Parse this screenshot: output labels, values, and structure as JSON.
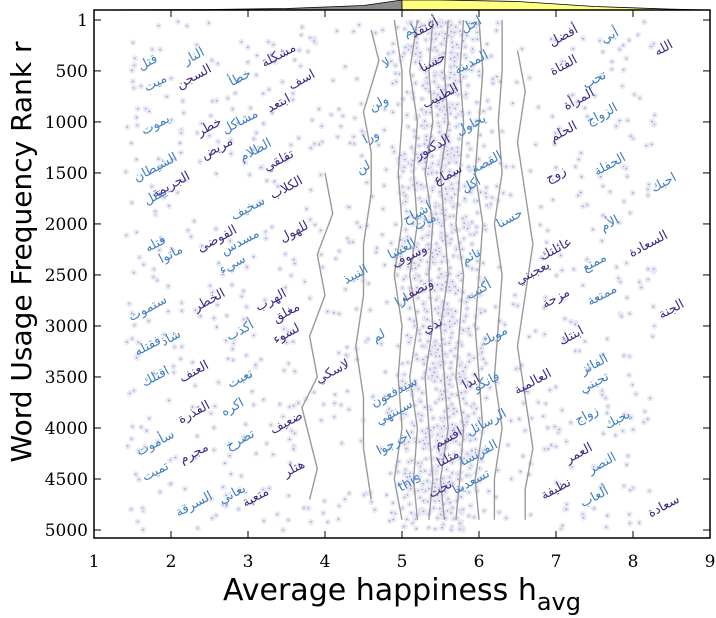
{
  "chart_data": {
    "type": "scatter",
    "title": "",
    "xlabel": "Average happiness h",
    "xlabel_sub": "avg",
    "ylabel": "Word Usage Frequency Rank r",
    "xlim": [
      1,
      9
    ],
    "ylim": [
      5000,
      1
    ],
    "x_ticks": [
      "1",
      "2",
      "3",
      "4",
      "5",
      "6",
      "7",
      "8",
      "9"
    ],
    "y_ticks": [
      "1",
      "500",
      "1000",
      "1500",
      "2000",
      "2500",
      "3000",
      "3500",
      "4000",
      "4500",
      "5000"
    ],
    "y_tick_values": [
      1,
      500,
      1000,
      1500,
      2000,
      2500,
      3000,
      3500,
      4000,
      4500,
      5000
    ],
    "grid": false,
    "colors": {
      "point_fill": "#e6e6f6",
      "point_dot": "#9a9abe",
      "word_dark": "#3d2b84",
      "word_light": "#3f7fc0",
      "percentile_line": "#9a9a9a",
      "hist_left": "#8c8c8c",
      "hist_right": "#ffff80"
    },
    "words": [
      {
        "text": "قتل",
        "x": 1.7,
        "y": 420,
        "tone": "light"
      },
      {
        "text": "ميت",
        "x": 1.8,
        "y": 620,
        "tone": "light"
      },
      {
        "text": "يموت",
        "x": 1.8,
        "y": 1030,
        "tone": "light"
      },
      {
        "text": "الشيطان",
        "x": 1.8,
        "y": 1450,
        "tone": "light"
      },
      {
        "text": "الجريمة",
        "x": 2.0,
        "y": 1620,
        "tone": "dark"
      },
      {
        "text": "يقتل",
        "x": 1.8,
        "y": 1730,
        "tone": "light"
      },
      {
        "text": "قتله",
        "x": 1.8,
        "y": 2200,
        "tone": "light"
      },
      {
        "text": "ماتوا",
        "x": 2.0,
        "y": 2300,
        "tone": "light"
      },
      {
        "text": "ستموت",
        "x": 1.7,
        "y": 2830,
        "tone": "light"
      },
      {
        "text": "شاذ",
        "x": 2.0,
        "y": 3120,
        "tone": "light"
      },
      {
        "text": "فقتله",
        "x": 1.7,
        "y": 3200,
        "tone": "light"
      },
      {
        "text": "اقتلك",
        "x": 1.8,
        "y": 3500,
        "tone": "light"
      },
      {
        "text": "سأموت",
        "x": 1.8,
        "y": 4150,
        "tone": "light"
      },
      {
        "text": "تميت",
        "x": 1.8,
        "y": 4430,
        "tone": "light"
      },
      {
        "text": "السجن",
        "x": 2.3,
        "y": 560,
        "tone": "dark"
      },
      {
        "text": "النار",
        "x": 2.3,
        "y": 360,
        "tone": "light"
      },
      {
        "text": "خطر",
        "x": 2.5,
        "y": 1050,
        "tone": "dark"
      },
      {
        "text": "مريض",
        "x": 2.6,
        "y": 1260,
        "tone": "dark"
      },
      {
        "text": "الفوضى",
        "x": 2.6,
        "y": 2150,
        "tone": "dark"
      },
      {
        "text": "الخطر",
        "x": 2.5,
        "y": 2750,
        "tone": "dark"
      },
      {
        "text": "العنف",
        "x": 2.3,
        "y": 3450,
        "tone": "dark"
      },
      {
        "text": "القذرة",
        "x": 2.3,
        "y": 3850,
        "tone": "dark"
      },
      {
        "text": "مجرم",
        "x": 2.3,
        "y": 4250,
        "tone": "dark"
      },
      {
        "text": "السرقة",
        "x": 2.3,
        "y": 4750,
        "tone": "light"
      },
      {
        "text": "خطأ",
        "x": 2.9,
        "y": 570,
        "tone": "light"
      },
      {
        "text": "مشاكل",
        "x": 2.9,
        "y": 1000,
        "tone": "light"
      },
      {
        "text": "الظلام",
        "x": 3.1,
        "y": 1280,
        "tone": "light"
      },
      {
        "text": "سخيف",
        "x": 3.0,
        "y": 1850,
        "tone": "light"
      },
      {
        "text": "مسدس",
        "x": 2.9,
        "y": 2180,
        "tone": "light"
      },
      {
        "text": "سيء",
        "x": 2.8,
        "y": 2400,
        "tone": "light"
      },
      {
        "text": "أكذب",
        "x": 2.9,
        "y": 3050,
        "tone": "light"
      },
      {
        "text": "تعبت",
        "x": 2.9,
        "y": 3520,
        "tone": "light"
      },
      {
        "text": "اكره",
        "x": 2.8,
        "y": 3800,
        "tone": "light"
      },
      {
        "text": "تصرخ",
        "x": 2.9,
        "y": 4120,
        "tone": "light"
      },
      {
        "text": "يعاني",
        "x": 2.8,
        "y": 4650,
        "tone": "light"
      },
      {
        "text": "مشكلة",
        "x": 3.4,
        "y": 350,
        "tone": "dark"
      },
      {
        "text": "اسف",
        "x": 3.7,
        "y": 590,
        "tone": "dark"
      },
      {
        "text": "ابتعد",
        "x": 3.4,
        "y": 820,
        "tone": "dark"
      },
      {
        "text": "تقلقي",
        "x": 3.4,
        "y": 1380,
        "tone": "dark"
      },
      {
        "text": "الكلاب",
        "x": 3.5,
        "y": 1650,
        "tone": "dark"
      },
      {
        "text": "للهول",
        "x": 3.6,
        "y": 2080,
        "tone": "dark"
      },
      {
        "text": "الهرب",
        "x": 3.3,
        "y": 2750,
        "tone": "dark"
      },
      {
        "text": "مغلق",
        "x": 3.5,
        "y": 2870,
        "tone": "dark"
      },
      {
        "text": "لسوء",
        "x": 3.5,
        "y": 3080,
        "tone": "dark"
      },
      {
        "text": "ضعيف",
        "x": 3.5,
        "y": 3950,
        "tone": "dark"
      },
      {
        "text": "هتلر",
        "x": 3.6,
        "y": 4400,
        "tone": "dark"
      },
      {
        "text": "متعبة",
        "x": 3.1,
        "y": 4680,
        "tone": "dark"
      },
      {
        "text": "لاسكي",
        "x": 4.1,
        "y": 3450,
        "tone": "dark"
      },
      {
        "text": "لا",
        "x": 4.8,
        "y": 430,
        "tone": "light"
      },
      {
        "text": "لم",
        "x": 5.1,
        "y": 110,
        "tone": "light"
      },
      {
        "text": "ولن",
        "x": 4.7,
        "y": 820,
        "tone": "light"
      },
      {
        "text": "ورا",
        "x": 4.6,
        "y": 1150,
        "tone": "light"
      },
      {
        "text": "لن",
        "x": 4.5,
        "y": 1450,
        "tone": "light"
      },
      {
        "text": "النبيذ",
        "x": 4.4,
        "y": 2500,
        "tone": "light"
      },
      {
        "text": "لم",
        "x": 4.7,
        "y": 3100,
        "tone": "light"
      },
      {
        "text": "سيدفعون",
        "x": 4.9,
        "y": 3650,
        "tone": "light"
      },
      {
        "text": "سينتهي",
        "x": 4.9,
        "y": 3850,
        "tone": "light"
      },
      {
        "text": "اخرجوا",
        "x": 4.9,
        "y": 4150,
        "tone": "light"
      },
      {
        "text": "this",
        "x": 5.1,
        "y": 4540,
        "tone": "light"
      },
      {
        "text": "أعتقد",
        "x": 5.3,
        "y": 80,
        "tone": "dark"
      },
      {
        "text": "حسنا",
        "x": 5.4,
        "y": 420,
        "tone": "dark"
      },
      {
        "text": "الطبيب",
        "x": 5.5,
        "y": 750,
        "tone": "dark"
      },
      {
        "text": "الدكتور",
        "x": 5.4,
        "y": 1250,
        "tone": "dark"
      },
      {
        "text": "سماع",
        "x": 5.6,
        "y": 1520,
        "tone": "dark"
      },
      {
        "text": "اشباح",
        "x": 5.2,
        "y": 1900,
        "tone": "light"
      },
      {
        "text": "مات",
        "x": 5.3,
        "y": 1980,
        "tone": "light"
      },
      {
        "text": "وسوف",
        "x": 5.1,
        "y": 2320,
        "tone": "dark"
      },
      {
        "text": "العشا",
        "x": 5.0,
        "y": 2250,
        "tone": "light"
      },
      {
        "text": "وتصف",
        "x": 5.2,
        "y": 2650,
        "tone": "dark"
      },
      {
        "text": "ارا",
        "x": 5.0,
        "y": 2750,
        "tone": "light"
      },
      {
        "text": "ندي",
        "x": 5.4,
        "y": 3000,
        "tone": "dark"
      },
      {
        "text": "ابدا",
        "x": 5.9,
        "y": 3550,
        "tone": "dark"
      },
      {
        "text": "اقسم",
        "x": 5.6,
        "y": 4100,
        "tone": "dark"
      },
      {
        "text": "مثلنا",
        "x": 5.6,
        "y": 4300,
        "tone": "dark"
      },
      {
        "text": "تحت",
        "x": 5.5,
        "y": 4600,
        "tone": "dark"
      },
      {
        "text": "اجل",
        "x": 5.9,
        "y": 50,
        "tone": "light"
      },
      {
        "text": "المدينة",
        "x": 5.9,
        "y": 420,
        "tone": "light"
      },
      {
        "text": "يحاول",
        "x": 5.9,
        "y": 1030,
        "tone": "light"
      },
      {
        "text": "القصة",
        "x": 6.1,
        "y": 1400,
        "tone": "light"
      },
      {
        "text": "أكل",
        "x": 5.9,
        "y": 1620,
        "tone": "light"
      },
      {
        "text": "نائم",
        "x": 5.9,
        "y": 2320,
        "tone": "light"
      },
      {
        "text": "أكتب",
        "x": 6.0,
        "y": 2650,
        "tone": "light"
      },
      {
        "text": "موبك",
        "x": 6.2,
        "y": 3100,
        "tone": "light"
      },
      {
        "text": "فانكو",
        "x": 6.1,
        "y": 3550,
        "tone": "light"
      },
      {
        "text": "الرسائل",
        "x": 6.1,
        "y": 3950,
        "tone": "light"
      },
      {
        "text": "الفرنسا",
        "x": 6.0,
        "y": 4250,
        "tone": "light"
      },
      {
        "text": "تسعدينا",
        "x": 5.9,
        "y": 4530,
        "tone": "light"
      },
      {
        "text": "حسنا",
        "x": 6.4,
        "y": 1950,
        "tone": "light"
      },
      {
        "text": "يعجبني",
        "x": 6.7,
        "y": 2480,
        "tone": "dark"
      },
      {
        "text": "العالمية",
        "x": 6.7,
        "y": 3550,
        "tone": "dark"
      },
      {
        "text": "أفضل",
        "x": 7.1,
        "y": 160,
        "tone": "dark"
      },
      {
        "text": "الفتاة",
        "x": 7.1,
        "y": 450,
        "tone": "dark"
      },
      {
        "text": "المرأة",
        "x": 7.3,
        "y": 780,
        "tone": "dark"
      },
      {
        "text": "الحلم",
        "x": 7.1,
        "y": 1100,
        "tone": "dark"
      },
      {
        "text": "زوج",
        "x": 7.0,
        "y": 1520,
        "tone": "dark"
      },
      {
        "text": "عائلتك",
        "x": 7.0,
        "y": 2250,
        "tone": "dark"
      },
      {
        "text": "مزحة",
        "x": 7.0,
        "y": 2730,
        "tone": "dark"
      },
      {
        "text": "ابنتك",
        "x": 7.2,
        "y": 3100,
        "tone": "dark"
      },
      {
        "text": "العمر",
        "x": 7.3,
        "y": 4250,
        "tone": "dark"
      },
      {
        "text": "نظيفة",
        "x": 7.0,
        "y": 4600,
        "tone": "dark"
      },
      {
        "text": "أبي",
        "x": 7.7,
        "y": 160,
        "tone": "light"
      },
      {
        "text": "تحب",
        "x": 7.5,
        "y": 590,
        "tone": "light"
      },
      {
        "text": "الزواج",
        "x": 7.6,
        "y": 930,
        "tone": "light"
      },
      {
        "text": "الحفلة",
        "x": 7.7,
        "y": 1420,
        "tone": "light"
      },
      {
        "text": "الأم",
        "x": 7.7,
        "y": 2000,
        "tone": "light"
      },
      {
        "text": "ممتع",
        "x": 7.5,
        "y": 2380,
        "tone": "light"
      },
      {
        "text": "ممتعة",
        "x": 7.6,
        "y": 2700,
        "tone": "light"
      },
      {
        "text": "الفائز",
        "x": 7.5,
        "y": 3380,
        "tone": "light"
      },
      {
        "text": "تحبني",
        "x": 7.5,
        "y": 3560,
        "tone": "light"
      },
      {
        "text": "زواج",
        "x": 7.4,
        "y": 3880,
        "tone": "light"
      },
      {
        "text": "يحبك",
        "x": 7.8,
        "y": 3920,
        "tone": "light"
      },
      {
        "text": "النصر",
        "x": 7.6,
        "y": 4350,
        "tone": "light"
      },
      {
        "text": "ألعاب",
        "x": 7.5,
        "y": 4680,
        "tone": "light"
      },
      {
        "text": "الله",
        "x": 8.4,
        "y": 280,
        "tone": "dark"
      },
      {
        "text": "احبك",
        "x": 8.4,
        "y": 1600,
        "tone": "light"
      },
      {
        "text": "السعادة",
        "x": 8.2,
        "y": 2200,
        "tone": "dark"
      },
      {
        "text": "الجنة",
        "x": 8.5,
        "y": 2840,
        "tone": "dark"
      },
      {
        "text": "سعادة",
        "x": 8.4,
        "y": 4770,
        "tone": "dark"
      }
    ],
    "percentile_lines": [
      {
        "x": [
          4.0,
          4.1,
          3.9,
          4.0,
          3.8,
          3.9,
          3.7,
          3.8,
          3.9,
          3.8
        ],
        "y": [
          1500,
          1900,
          2300,
          2700,
          3100,
          3500,
          3800,
          4100,
          4400,
          4700
        ]
      },
      {
        "x": [
          4.6,
          4.7,
          4.5,
          4.6,
          4.6,
          4.5,
          4.5,
          4.4,
          4.5,
          4.5,
          4.6
        ],
        "y": [
          100,
          400,
          900,
          1300,
          1700,
          2200,
          2700,
          3200,
          3700,
          4200,
          4700
        ]
      },
      {
        "x": [
          4.9,
          5.0,
          5.0,
          4.95,
          5.0,
          4.9,
          5.0,
          4.95,
          5.0,
          4.9,
          5.0
        ],
        "y": [
          1,
          500,
          1000,
          1500,
          2000,
          2500,
          3000,
          3500,
          4000,
          4500,
          4900
        ]
      },
      {
        "x": [
          5.2,
          5.1,
          5.2,
          5.15,
          5.2,
          5.1,
          5.2,
          5.1,
          5.2,
          5.15,
          5.2
        ],
        "y": [
          1,
          500,
          1000,
          1500,
          2000,
          2500,
          3000,
          3500,
          4000,
          4500,
          4900
        ]
      },
      {
        "x": [
          5.4,
          5.35,
          5.4,
          5.3,
          5.4,
          5.35,
          5.4,
          5.3,
          5.35,
          5.4,
          5.35
        ],
        "y": [
          1,
          500,
          1000,
          1500,
          2000,
          2500,
          3000,
          3500,
          4000,
          4500,
          4900
        ]
      },
      {
        "x": [
          5.6,
          5.55,
          5.6,
          5.5,
          5.55,
          5.6,
          5.5,
          5.55,
          5.6,
          5.5,
          5.55
        ],
        "y": [
          1,
          500,
          1000,
          1500,
          2000,
          2500,
          3000,
          3500,
          4000,
          4500,
          4900
        ]
      },
      {
        "x": [
          5.8,
          5.75,
          5.8,
          5.75,
          5.7,
          5.8,
          5.75,
          5.7,
          5.8,
          5.75,
          5.7
        ],
        "y": [
          1,
          500,
          1000,
          1500,
          2000,
          2500,
          3000,
          3500,
          4000,
          4500,
          4900
        ]
      },
      {
        "x": [
          6.0,
          6.05,
          6.0,
          5.95,
          6.05,
          6.0,
          5.95,
          6.0,
          6.05,
          5.95,
          6.0
        ],
        "y": [
          1,
          500,
          1000,
          1500,
          2000,
          2500,
          3000,
          3500,
          4000,
          4500,
          4900
        ]
      },
      {
        "x": [
          6.3,
          6.3,
          6.25,
          6.3,
          6.2,
          6.3,
          6.25,
          6.2,
          6.3,
          6.2,
          6.2
        ],
        "y": [
          1,
          500,
          1000,
          1500,
          2000,
          2500,
          3000,
          3500,
          4000,
          4500,
          4900
        ]
      },
      {
        "x": [
          6.5,
          6.6,
          6.5,
          6.6,
          6.7,
          6.6,
          6.5,
          6.6,
          6.7,
          6.6,
          6.6
        ],
        "y": [
          300,
          700,
          1200,
          1700,
          2200,
          2700,
          3200,
          3700,
          4200,
          4600,
          4900
        ]
      }
    ],
    "histogram": {
      "bin_edges": [
        1,
        2,
        3,
        4,
        5,
        6,
        7,
        8,
        9
      ],
      "counts": [
        0.02,
        0.05,
        0.15,
        0.45,
        1.0,
        0.85,
        0.35,
        0.08
      ],
      "split": 5.0
    }
  }
}
